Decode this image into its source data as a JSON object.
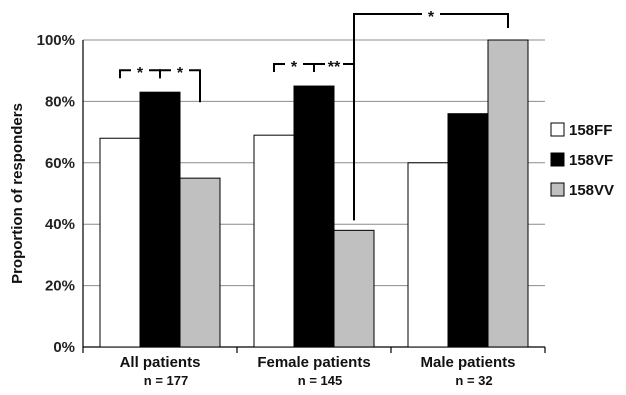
{
  "chart_data": {
    "type": "bar",
    "ylabel": "Proportion of responders",
    "ylim": [
      0,
      100
    ],
    "yticks": [
      "0%",
      "20%",
      "40%",
      "60%",
      "80%",
      "100%"
    ],
    "tick_values": [
      0,
      20,
      40,
      60,
      80,
      100
    ],
    "grid": true,
    "legend_position": "right",
    "categories": [
      "All patients",
      "Female patients",
      "Male patients"
    ],
    "category_counts": [
      "n = 177",
      "n = 145",
      "n = 32"
    ],
    "series": [
      {
        "name": "158FF",
        "color": "#ffffff",
        "values": [
          68,
          69,
          60
        ]
      },
      {
        "name": "158VF",
        "color": "#000000",
        "values": [
          83,
          85,
          76
        ]
      },
      {
        "name": "158VV",
        "color": "#c0c0c0",
        "values": [
          55,
          38,
          100
        ]
      }
    ],
    "significance": [
      {
        "label": "*",
        "category": 0,
        "from_series": 0,
        "to_series": 1
      },
      {
        "label": "*",
        "category": 0,
        "from_series": 1,
        "to_series": 2
      },
      {
        "label": "*",
        "category": 1,
        "from_series": 0,
        "to_series": 1
      },
      {
        "label": "**",
        "category": 1,
        "from_series": 1,
        "to_series": 2
      },
      {
        "label": "*",
        "from_category": 1,
        "to_category": 2,
        "series": 2
      }
    ]
  }
}
